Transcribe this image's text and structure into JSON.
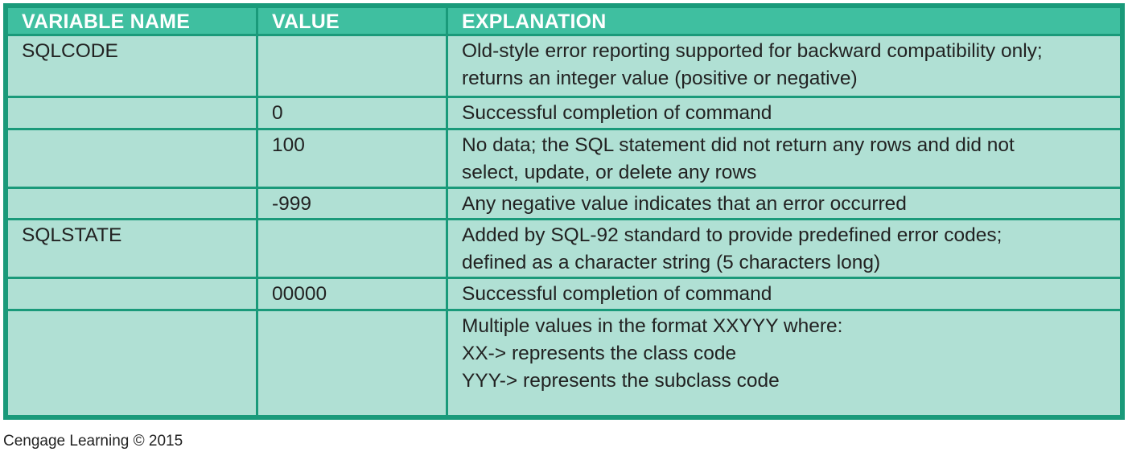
{
  "table": {
    "headers": [
      "VARIABLE NAME",
      "VALUE",
      "EXPLANATION"
    ],
    "rows": [
      {
        "name": "SQLCODE",
        "value": "",
        "explanation": [
          "Old-style error reporting supported for backward compatibility only;",
          "returns an integer value (positive or negative)"
        ]
      },
      {
        "name": "",
        "value": "0",
        "explanation": [
          "Successful completion of command"
        ]
      },
      {
        "name": "",
        "value": "100",
        "explanation": [
          "No data; the SQL statement did not return any rows and did not",
          "select, update, or delete any rows"
        ]
      },
      {
        "name": "",
        "value": "-999",
        "explanation": [
          "Any negative value indicates that an error occurred"
        ]
      },
      {
        "name": "SQLSTATE",
        "value": "",
        "explanation": [
          "Added by SQL-92 standard to provide predefined error codes;",
          "defined as a character string (5 characters long)"
        ]
      },
      {
        "name": "",
        "value": "00000",
        "explanation": [
          "Successful completion of command"
        ]
      },
      {
        "name": "",
        "value": "",
        "explanation": [
          "Multiple values in the format XXYYY where:",
          "XX-> represents the class code",
          "YYY-> represents the subclass code"
        ]
      }
    ]
  },
  "footer": {
    "credit": "Cengage Learning © 2015"
  },
  "colors": {
    "header_bg": "#3fbfa0",
    "cell_bg": "#b0e0d4",
    "border": "#1a9a7a",
    "header_text": "#ffffff"
  }
}
